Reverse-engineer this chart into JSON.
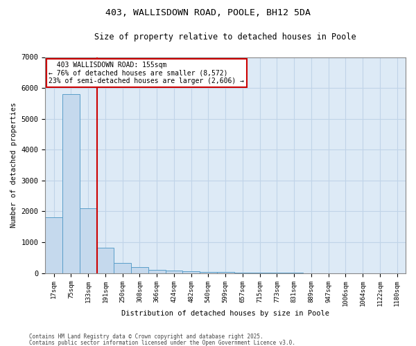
{
  "title1": "403, WALLISDOWN ROAD, POOLE, BH12 5DA",
  "title2": "Size of property relative to detached houses in Poole",
  "xlabel": "Distribution of detached houses by size in Poole",
  "ylabel": "Number of detached properties",
  "categories": [
    "17sqm",
    "75sqm",
    "133sqm",
    "191sqm",
    "250sqm",
    "308sqm",
    "366sqm",
    "424sqm",
    "482sqm",
    "540sqm",
    "599sqm",
    "657sqm",
    "715sqm",
    "773sqm",
    "831sqm",
    "889sqm",
    "947sqm",
    "1006sqm",
    "1064sqm",
    "1122sqm",
    "1180sqm"
  ],
  "values": [
    1800,
    5800,
    2100,
    820,
    330,
    190,
    110,
    75,
    60,
    40,
    25,
    15,
    10,
    5,
    3,
    2,
    1,
    1,
    1,
    0,
    0
  ],
  "bar_color": "#c5d9ed",
  "bar_edge_color": "#5a9ec9",
  "red_line_x": 2.5,
  "annotation_title": "403 WALLISDOWN ROAD: 155sqm",
  "annotation_line1": "← 76% of detached houses are smaller (8,572)",
  "annotation_line2": "23% of semi-detached houses are larger (2,606) →",
  "annotation_box_color": "#ffffff",
  "annotation_border_color": "#cc0000",
  "red_line_color": "#cc0000",
  "grid_color": "#c0d4e8",
  "background_color": "#ddeaf6",
  "ylim": [
    0,
    7000
  ],
  "yticks": [
    0,
    1000,
    2000,
    3000,
    4000,
    5000,
    6000,
    7000
  ],
  "footer1": "Contains HM Land Registry data © Crown copyright and database right 2025.",
  "footer2": "Contains public sector information licensed under the Open Government Licence v3.0."
}
